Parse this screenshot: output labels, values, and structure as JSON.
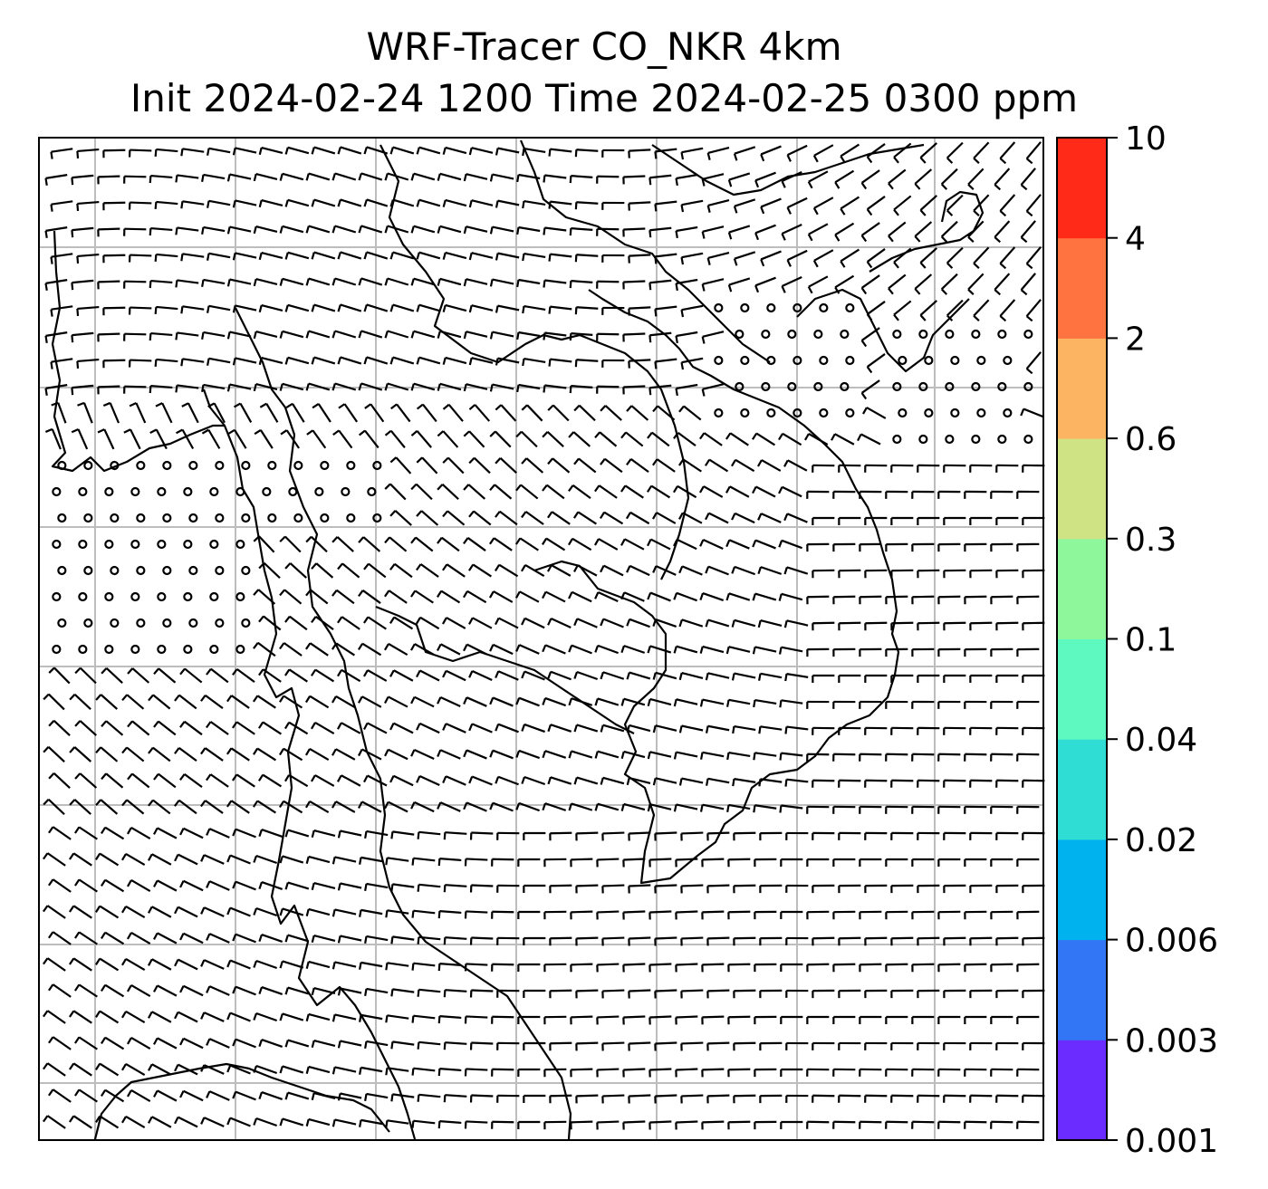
{
  "title": {
    "line1": "WRF-Tracer CO_NKR 4km",
    "line2": "Init 2024-02-24 1200 Time 2024-02-25 0300 ppm"
  },
  "colorbar": {
    "levels": [
      "0.001",
      "0.003",
      "0.006",
      "0.02",
      "0.04",
      "0.1",
      "0.3",
      "0.6",
      "2",
      "4",
      "10"
    ],
    "colors": [
      "#6a2cff",
      "#3376f5",
      "#00b3ee",
      "#30ddd4",
      "#5df9c0",
      "#8ef79c",
      "#d0e384",
      "#fdb462",
      "#ff7340",
      "#ff2a18"
    ]
  },
  "map": {
    "gridline_color": "#bdbdbd",
    "vector_color": "#000000"
  }
}
